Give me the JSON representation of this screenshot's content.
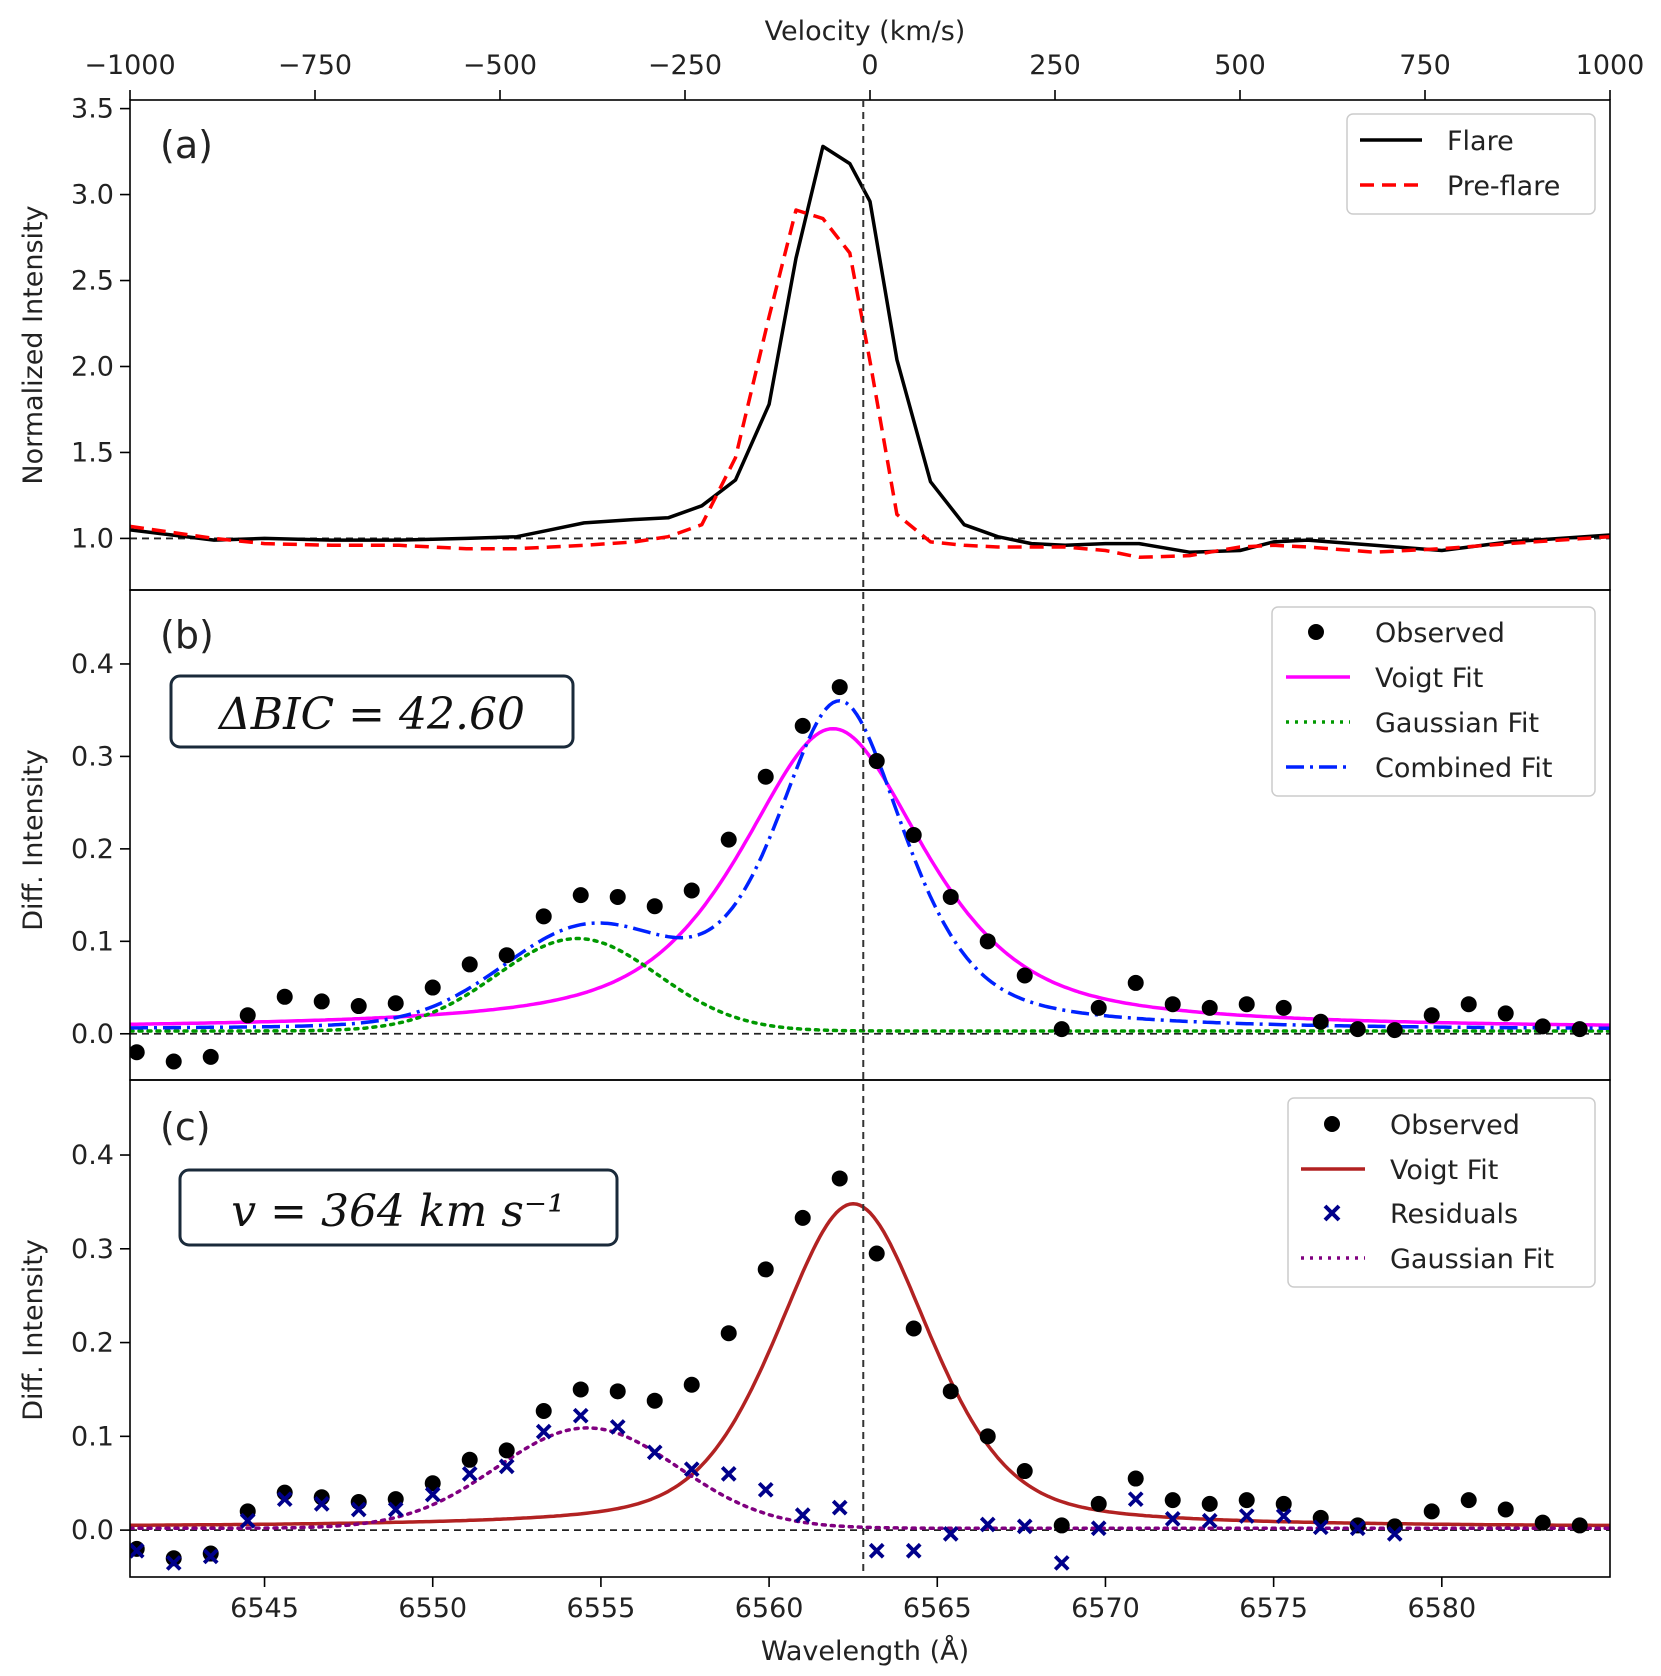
{
  "chart_data": [
    {
      "panel": "a",
      "type": "line",
      "panel_label": "(a)",
      "ylabel": "Normalized Intensity",
      "top_xlabel": "Velocity (km/s)",
      "velocity_ticks": [
        -1000,
        -750,
        -500,
        -250,
        0,
        250,
        500,
        750,
        1000
      ],
      "velocity_tick_labels": [
        "−1000",
        "−750",
        "−500",
        "−250",
        "0",
        "250",
        "500",
        "750",
        "1000"
      ],
      "xlim": [
        6541,
        6585
      ],
      "ylim": [
        0.7,
        3.55
      ],
      "yticks": [
        1.0,
        1.5,
        2.0,
        2.5,
        3.0,
        3.5
      ],
      "ytick_labels": [
        "1.0",
        "1.5",
        "2.0",
        "2.5",
        "3.0",
        "3.5"
      ],
      "series": [
        {
          "name": "Flare",
          "color": "#000000",
          "style": "solid",
          "x": [
            6541,
            6543.5,
            6545,
            6547,
            6549,
            6551,
            6552.5,
            6553.5,
            6554.5,
            6556,
            6557,
            6558,
            6559,
            6560,
            6560.8,
            6561.6,
            6562.4,
            6563.0,
            6563.8,
            6564.8,
            6565.8,
            6566.8,
            6567.8,
            6568.8,
            6570,
            6571,
            6572.5,
            6574,
            6575,
            6576,
            6578,
            6580,
            6582,
            6585
          ],
          "y": [
            1.05,
            0.99,
            1.0,
            0.99,
            0.99,
            1.0,
            1.01,
            1.05,
            1.09,
            1.11,
            1.12,
            1.19,
            1.34,
            1.78,
            2.63,
            3.28,
            3.18,
            2.96,
            2.04,
            1.33,
            1.08,
            1.01,
            0.97,
            0.96,
            0.97,
            0.97,
            0.92,
            0.93,
            0.98,
            0.99,
            0.96,
            0.93,
            0.98,
            1.02
          ]
        },
        {
          "name": "Pre-flare",
          "color": "#ff0000",
          "style": "dashed",
          "x": [
            6541,
            6543.5,
            6545,
            6547,
            6549,
            6551,
            6552.5,
            6553.5,
            6554.5,
            6556,
            6557,
            6558,
            6559,
            6560,
            6560.8,
            6561.6,
            6562.4,
            6563.0,
            6563.8,
            6564.8,
            6565.8,
            6566.8,
            6567.8,
            6568.8,
            6570,
            6571,
            6572.5,
            6574,
            6575,
            6576,
            6578,
            6580,
            6582,
            6585
          ],
          "y": [
            1.07,
            1.0,
            0.97,
            0.96,
            0.96,
            0.94,
            0.94,
            0.95,
            0.96,
            0.98,
            1.01,
            1.08,
            1.47,
            2.29,
            2.91,
            2.86,
            2.66,
            2.03,
            1.14,
            0.98,
            0.96,
            0.95,
            0.95,
            0.95,
            0.93,
            0.89,
            0.9,
            0.95,
            0.96,
            0.95,
            0.92,
            0.94,
            0.97,
            1.01
          ]
        }
      ],
      "reference_line_y": 1.0,
      "legend": [
        "Flare",
        "Pre-flare"
      ],
      "legend_position": "top-right"
    },
    {
      "panel": "b",
      "type": "scatter",
      "panel_label": "(b)",
      "ylabel": "Diff. Intensity",
      "xlim": [
        6541,
        6585
      ],
      "ylim": [
        -0.05,
        0.48
      ],
      "yticks": [
        0.0,
        0.1,
        0.2,
        0.3,
        0.4
      ],
      "ytick_labels": [
        "0.0",
        "0.1",
        "0.2",
        "0.3",
        "0.4"
      ],
      "annotation": "ΔBIC = 42.60",
      "series": [
        {
          "name": "Observed",
          "kind": "markers",
          "color": "#000000",
          "x": [
            6541.2,
            6542.3,
            6543.4,
            6544.5,
            6545.6,
            6546.7,
            6547.8,
            6548.9,
            6550.0,
            6551.1,
            6552.2,
            6553.3,
            6554.4,
            6555.5,
            6556.6,
            6557.7,
            6558.8,
            6559.9,
            6561.0,
            6562.1,
            6563.2,
            6564.3,
            6565.4,
            6566.5,
            6567.6,
            6568.7,
            6569.8,
            6570.9,
            6572.0,
            6573.1,
            6574.2,
            6575.3,
            6576.4,
            6577.5,
            6578.6,
            6579.7,
            6580.8,
            6581.9,
            6583.0,
            6584.1
          ],
          "y": [
            -0.02,
            -0.03,
            -0.025,
            0.02,
            0.04,
            0.035,
            0.03,
            0.033,
            0.05,
            0.075,
            0.085,
            0.127,
            0.15,
            0.148,
            0.138,
            0.155,
            0.21,
            0.278,
            0.333,
            0.375,
            0.295,
            0.215,
            0.148,
            0.1,
            0.063,
            0.005,
            0.028,
            0.055,
            0.032,
            0.028,
            0.032,
            0.028,
            0.013,
            0.005,
            0.004,
            0.02,
            0.032,
            0.022,
            0.008,
            0.005
          ]
        },
        {
          "name": "Voigt Fit",
          "kind": "voigt",
          "color": "#ff00ff",
          "style": "solid",
          "center": 6561.9,
          "amplitude": 0.325,
          "sigma": 1.7,
          "gamma": 2.0,
          "baseline": 0.005
        },
        {
          "name": "Gaussian Fit",
          "kind": "gaussian",
          "color": "#009900",
          "style": "dotted",
          "center": 6554.3,
          "amplitude": 0.1,
          "sigma": 2.4,
          "baseline": 0.003
        },
        {
          "name": "Combined Fit",
          "kind": "combined",
          "color": "#0022ff",
          "style": "dashdot"
        }
      ],
      "reference_line_y": 0.0,
      "legend": [
        "Observed",
        "Voigt Fit",
        "Gaussian Fit",
        "Combined Fit"
      ],
      "legend_position": "top-right"
    },
    {
      "panel": "c",
      "type": "scatter",
      "panel_label": "(c)",
      "ylabel": "Diff. Intensity",
      "xlabel": "Wavelength (Å)",
      "xlim": [
        6541,
        6585
      ],
      "ylim": [
        -0.05,
        0.48
      ],
      "xticks": [
        6545,
        6550,
        6555,
        6560,
        6565,
        6570,
        6575,
        6580
      ],
      "xtick_labels": [
        "6545",
        "6550",
        "6555",
        "6560",
        "6565",
        "6570",
        "6575",
        "6580"
      ],
      "yticks": [
        0.0,
        0.1,
        0.2,
        0.3,
        0.4
      ],
      "ytick_labels": [
        "0.0",
        "0.1",
        "0.2",
        "0.3",
        "0.4"
      ],
      "annotation": "v = 364 km s⁻¹",
      "series": [
        {
          "name": "Observed",
          "kind": "markers",
          "color": "#000000",
          "x": [
            6541.2,
            6542.3,
            6543.4,
            6544.5,
            6545.6,
            6546.7,
            6547.8,
            6548.9,
            6550.0,
            6551.1,
            6552.2,
            6553.3,
            6554.4,
            6555.5,
            6556.6,
            6557.7,
            6558.8,
            6559.9,
            6561.0,
            6562.1,
            6563.2,
            6564.3,
            6565.4,
            6566.5,
            6567.6,
            6568.7,
            6569.8,
            6570.9,
            6572.0,
            6573.1,
            6574.2,
            6575.3,
            6576.4,
            6577.5,
            6578.6,
            6579.7,
            6580.8,
            6581.9,
            6583.0,
            6584.1
          ],
          "y": [
            -0.02,
            -0.03,
            -0.025,
            0.02,
            0.04,
            0.035,
            0.03,
            0.033,
            0.05,
            0.075,
            0.085,
            0.127,
            0.15,
            0.148,
            0.138,
            0.155,
            0.21,
            0.278,
            0.333,
            0.375,
            0.295,
            0.215,
            0.148,
            0.1,
            0.063,
            0.005,
            0.028,
            0.055,
            0.032,
            0.028,
            0.032,
            0.028,
            0.013,
            0.005,
            0.004,
            0.02,
            0.032,
            0.022,
            0.008,
            0.005
          ]
        },
        {
          "name": "Voigt Fit",
          "kind": "voigt",
          "color": "#b22222",
          "style": "solid",
          "center": 6562.5,
          "amplitude": 0.345,
          "sigma": 1.85,
          "gamma": 0.9,
          "baseline": 0.003
        },
        {
          "name": "Residuals",
          "kind": "crosses",
          "color": "#00008b",
          "x": [
            6541.2,
            6542.3,
            6543.4,
            6544.5,
            6545.6,
            6546.7,
            6547.8,
            6548.9,
            6550.0,
            6551.1,
            6552.2,
            6553.3,
            6554.4,
            6555.5,
            6556.6,
            6557.7,
            6558.8,
            6559.9,
            6561.0,
            6562.1,
            6563.2,
            6564.3,
            6565.4,
            6566.5,
            6567.6,
            6568.7,
            6569.8,
            6570.9,
            6572.0,
            6573.1,
            6574.2,
            6575.3,
            6576.4,
            6577.5,
            6578.6
          ],
          "y": [
            -0.022,
            -0.035,
            -0.028,
            0.01,
            0.033,
            0.028,
            0.022,
            0.022,
            0.038,
            0.06,
            0.068,
            0.105,
            0.122,
            0.11,
            0.083,
            0.065,
            0.06,
            0.043,
            0.016,
            0.024,
            -0.022,
            -0.022,
            -0.004,
            0.006,
            0.004,
            -0.035,
            0.002,
            0.033,
            0.012,
            0.01,
            0.015,
            0.015,
            0.003,
            0.002,
            -0.004
          ]
        },
        {
          "name": "Gaussian Fit",
          "kind": "gaussian",
          "color": "#800080",
          "style": "dotted",
          "center": 6554.6,
          "amplitude": 0.107,
          "sigma": 2.7,
          "baseline": 0.002
        }
      ],
      "reference_line_y": 0.0,
      "legend": [
        "Observed",
        "Voigt Fit",
        "Residuals",
        "Gaussian Fit"
      ],
      "legend_position": "top-right"
    }
  ],
  "center_line_wavelength": 6562.8
}
